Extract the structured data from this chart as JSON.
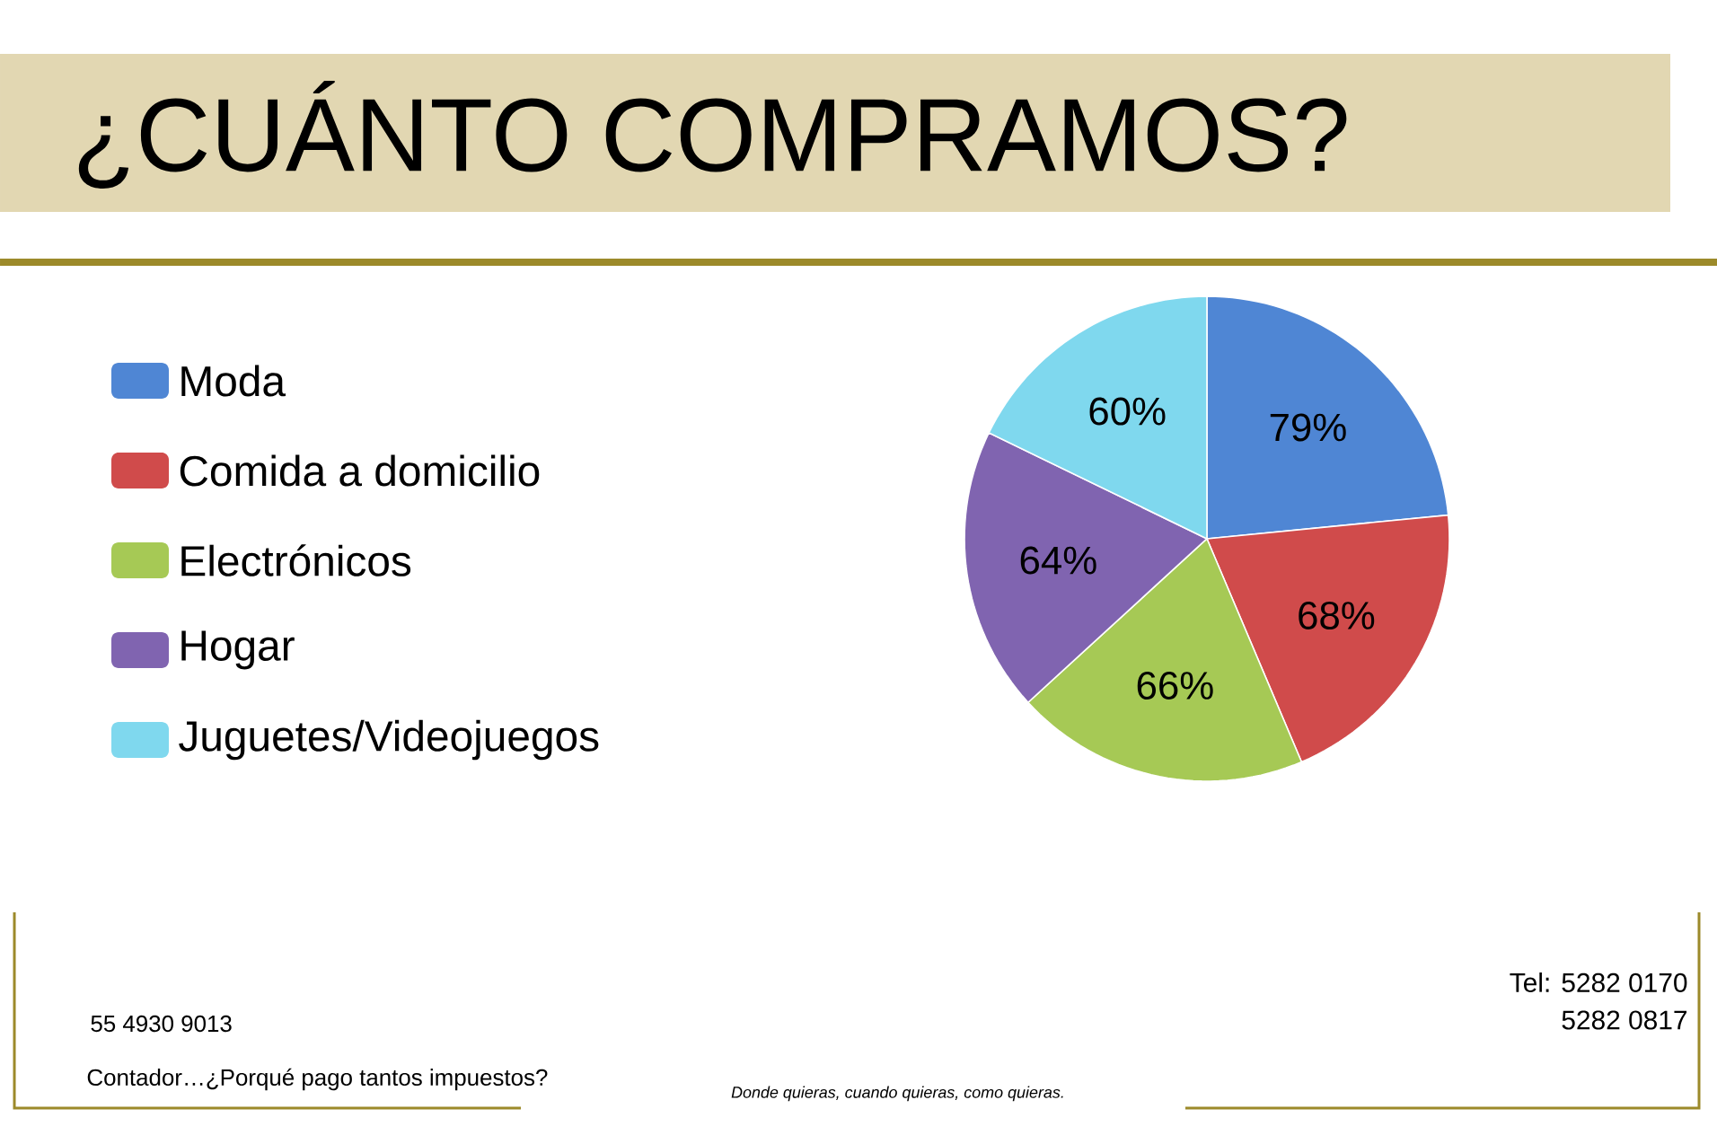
{
  "chart_data": {
    "type": "pie",
    "title": "¿CUÁNTO COMPRAMOS?",
    "categories": [
      "Moda",
      "Comida a domicilio",
      "Electrónicos",
      "Hogar",
      "Juguetes/Videojuegos"
    ],
    "values": [
      79,
      68,
      66,
      64,
      60
    ],
    "value_labels": [
      "79%",
      "68%",
      "66%",
      "64%",
      "60%"
    ],
    "colors": [
      "#4f86d4",
      "#d04b4b",
      "#a6c955",
      "#8064b0",
      "#7fd8ee"
    ],
    "legend": "left",
    "annotations": [
      "55 4930 9013",
      "Contador…¿Porqué pago tantos impuestos?",
      "Donde quieras, cuando quieras, como quieras.",
      "Tel: 5282 0170",
      "5282 0817"
    ]
  }
}
